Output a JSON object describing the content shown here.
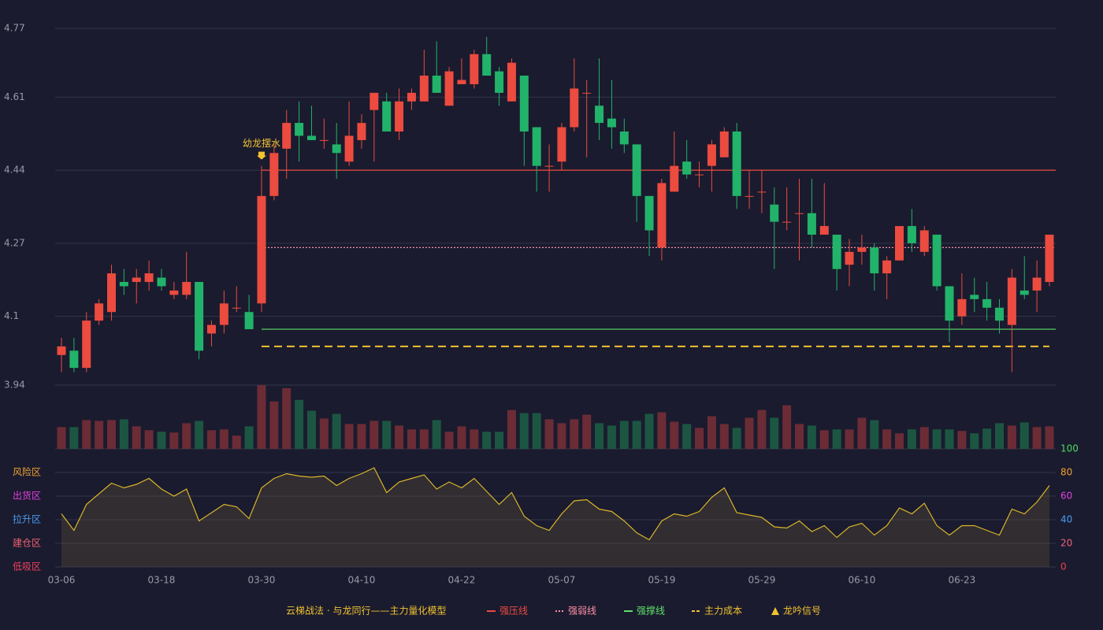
{
  "chart_data": {
    "type": "candlestick",
    "title": "云梯战法 · 与龙同行——主力量化模型",
    "categories": [
      "03-06",
      null,
      null,
      null,
      null,
      null,
      null,
      null,
      "03-18",
      null,
      null,
      null,
      null,
      null,
      null,
      null,
      "03-30",
      null,
      null,
      null,
      null,
      null,
      null,
      null,
      "04-10",
      null,
      null,
      null,
      null,
      null,
      null,
      null,
      "04-22",
      null,
      null,
      null,
      null,
      null,
      null,
      null,
      "05-07",
      null,
      null,
      null,
      null,
      null,
      null,
      null,
      "05-19",
      null,
      null,
      null,
      null,
      null,
      null,
      null,
      "05-29",
      null,
      null,
      null,
      null,
      null,
      null,
      null,
      "06-10",
      null,
      null,
      null,
      null,
      null,
      null,
      null,
      "06-23",
      null,
      null,
      null,
      null,
      null,
      null,
      null
    ],
    "open": [
      4.01,
      4.02,
      3.98,
      4.09,
      4.11,
      4.18,
      4.18,
      4.18,
      4.19,
      4.15,
      4.15,
      4.18,
      4.06,
      4.08,
      4.12,
      4.11,
      4.13,
      4.38,
      4.49,
      4.55,
      4.52,
      4.51,
      4.5,
      4.46,
      4.51,
      4.58,
      4.6,
      4.53,
      4.6,
      4.6,
      4.66,
      4.59,
      4.64,
      4.64,
      4.71,
      4.67,
      4.6,
      4.66,
      4.54,
      4.45,
      4.46,
      4.54,
      4.62,
      4.59,
      4.56,
      4.53,
      4.5,
      4.38,
      4.26,
      4.39,
      4.46,
      4.43,
      4.45,
      4.47,
      4.53,
      4.38,
      4.39,
      4.36,
      4.32,
      4.34,
      4.34,
      4.29,
      4.29,
      4.22,
      4.25,
      4.26,
      4.2,
      4.23,
      4.31,
      4.25,
      4.29,
      4.17,
      4.1,
      4.15,
      4.14,
      4.12,
      4.08,
      4.16,
      4.16,
      4.18
    ],
    "high": [
      4.05,
      4.05,
      4.11,
      4.14,
      4.22,
      4.21,
      4.21,
      4.23,
      4.21,
      4.18,
      4.25,
      4.18,
      4.09,
      4.16,
      4.17,
      4.15,
      4.45,
      4.5,
      4.58,
      4.6,
      4.59,
      4.56,
      4.55,
      4.6,
      4.57,
      4.62,
      4.62,
      4.63,
      4.63,
      4.72,
      4.74,
      4.68,
      4.7,
      4.72,
      4.75,
      4.68,
      4.7,
      4.66,
      4.54,
      4.5,
      4.55,
      4.7,
      4.65,
      4.7,
      4.65,
      4.56,
      4.5,
      4.38,
      4.42,
      4.53,
      4.51,
      4.46,
      4.51,
      4.54,
      4.55,
      4.44,
      4.44,
      4.4,
      4.4,
      4.42,
      4.42,
      4.41,
      4.29,
      4.28,
      4.29,
      4.27,
      4.24,
      4.31,
      4.35,
      4.31,
      4.29,
      4.17,
      4.2,
      4.19,
      4.18,
      4.14,
      4.21,
      4.24,
      4.23,
      4.29
    ],
    "low": [
      3.97,
      3.97,
      3.97,
      4.08,
      4.09,
      4.15,
      4.13,
      4.16,
      4.16,
      4.14,
      4.14,
      4.0,
      4.03,
      4.06,
      4.11,
      4.07,
      4.11,
      4.37,
      4.42,
      4.46,
      4.51,
      4.49,
      4.42,
      4.45,
      4.49,
      4.46,
      4.53,
      4.51,
      4.58,
      4.6,
      4.62,
      4.59,
      4.64,
      4.63,
      4.66,
      4.59,
      4.6,
      4.45,
      4.39,
      4.39,
      4.44,
      4.53,
      4.47,
      4.51,
      4.49,
      4.48,
      4.32,
      4.24,
      4.23,
      4.39,
      4.42,
      4.4,
      4.39,
      4.47,
      4.35,
      4.35,
      4.34,
      4.21,
      4.3,
      4.23,
      4.26,
      4.29,
      4.16,
      4.17,
      4.22,
      4.16,
      4.14,
      4.23,
      4.25,
      4.24,
      4.16,
      4.04,
      4.08,
      4.11,
      4.09,
      4.06,
      3.97,
      4.14,
      4.11,
      4.17
    ],
    "close": [
      4.03,
      3.98,
      4.09,
      4.13,
      4.2,
      4.17,
      4.19,
      4.2,
      4.17,
      4.16,
      4.18,
      4.02,
      4.08,
      4.13,
      4.12,
      4.07,
      4.38,
      4.48,
      4.55,
      4.52,
      4.51,
      4.51,
      4.48,
      4.52,
      4.55,
      4.62,
      4.53,
      4.6,
      4.62,
      4.66,
      4.62,
      4.67,
      4.65,
      4.71,
      4.66,
      4.62,
      4.69,
      4.53,
      4.45,
      4.45,
      4.54,
      4.63,
      4.62,
      4.55,
      4.54,
      4.5,
      4.38,
      4.3,
      4.41,
      4.45,
      4.43,
      4.43,
      4.5,
      4.53,
      4.38,
      4.38,
      4.39,
      4.32,
      4.32,
      4.34,
      4.29,
      4.31,
      4.21,
      4.25,
      4.26,
      4.2,
      4.23,
      4.31,
      4.27,
      4.3,
      4.17,
      4.09,
      4.14,
      4.14,
      4.12,
      4.09,
      4.19,
      4.15,
      4.19,
      4.29
    ],
    "up_color": "#ec4b40",
    "down_color": "#22b36a",
    "ylim": [
      3.94,
      4.77
    ],
    "yticks": [
      3.94,
      4.1,
      4.27,
      4.44,
      4.61,
      4.77
    ],
    "grid": true,
    "lines": [
      {
        "name": "强压线",
        "value": 4.44,
        "color": "#ec4b40",
        "style": "solid",
        "start": "03-30"
      },
      {
        "name": "强弱线",
        "value": 4.26,
        "color": "#ff8fa8",
        "style": "dotted",
        "start": "03-30"
      },
      {
        "name": "强撑线",
        "value": 4.07,
        "color": "#5ee06a",
        "style": "solid",
        "start": "03-30"
      },
      {
        "name": "主力成本",
        "value": 4.03,
        "color": "#f2c230",
        "style": "dashed",
        "start": "03-30"
      }
    ],
    "signal": {
      "name": "龙吟信号",
      "color": "#f2c230"
    },
    "annotations": [
      {
        "text": "幼龙摆水",
        "x": "03-30"
      }
    ],
    "volume": {
      "values": [
        28,
        28,
        37,
        36,
        37,
        38,
        29,
        24,
        22,
        21,
        33,
        36,
        24,
        25,
        17,
        29,
        82,
        61,
        78,
        63,
        49,
        39,
        45,
        32,
        32,
        36,
        36,
        30,
        25,
        25,
        37,
        22,
        29,
        25,
        22,
        22,
        50,
        46,
        46,
        38,
        33,
        38,
        44,
        33,
        30,
        36,
        36,
        45,
        47,
        35,
        32,
        27,
        42,
        32,
        27,
        40,
        50,
        40,
        56,
        32,
        30,
        24,
        25,
        25,
        40,
        37,
        25,
        20,
        25,
        28,
        25,
        25,
        23,
        20,
        26,
        33,
        30,
        34,
        28,
        29
      ],
      "up_color": "#6b2c36",
      "down_color": "#1c5642"
    },
    "indicator": {
      "type": "area",
      "values": [
        45,
        31,
        53,
        62,
        71,
        67,
        70,
        75,
        66,
        60,
        66,
        39,
        46,
        53,
        51,
        41,
        67,
        75,
        79,
        77,
        76,
        77,
        69,
        75,
        79,
        84,
        63,
        72,
        75,
        78,
        66,
        72,
        67,
        75,
        64,
        53,
        63,
        43,
        35,
        31,
        45,
        56,
        57,
        49,
        47,
        39,
        29,
        23,
        39,
        45,
        43,
        47,
        59,
        67,
        46,
        44,
        42,
        34,
        33,
        39,
        30,
        35,
        25,
        34,
        37,
        27,
        35,
        50,
        45,
        54,
        35,
        27,
        35,
        35,
        31,
        27,
        49,
        45,
        55,
        69
      ],
      "color": "#d9b52a",
      "ylim": [
        0,
        100
      ],
      "yticks": [
        0,
        20,
        40,
        60,
        80,
        100
      ],
      "ytick_colors": [
        "#f0404a",
        "#f06080",
        "#4a9af0",
        "#e040e0",
        "#f0a030",
        "#4cd964"
      ],
      "zones": [
        {
          "label": "风险区",
          "value": 80,
          "color": "#f0a030"
        },
        {
          "label": "出货区",
          "value": 60,
          "color": "#e040e0"
        },
        {
          "label": "拉升区",
          "value": 40,
          "color": "#4a9af0"
        },
        {
          "label": "建仓区",
          "value": 20,
          "color": "#f06070"
        },
        {
          "label": "低吸区",
          "value": 0,
          "color": "#f04060"
        }
      ]
    }
  }
}
